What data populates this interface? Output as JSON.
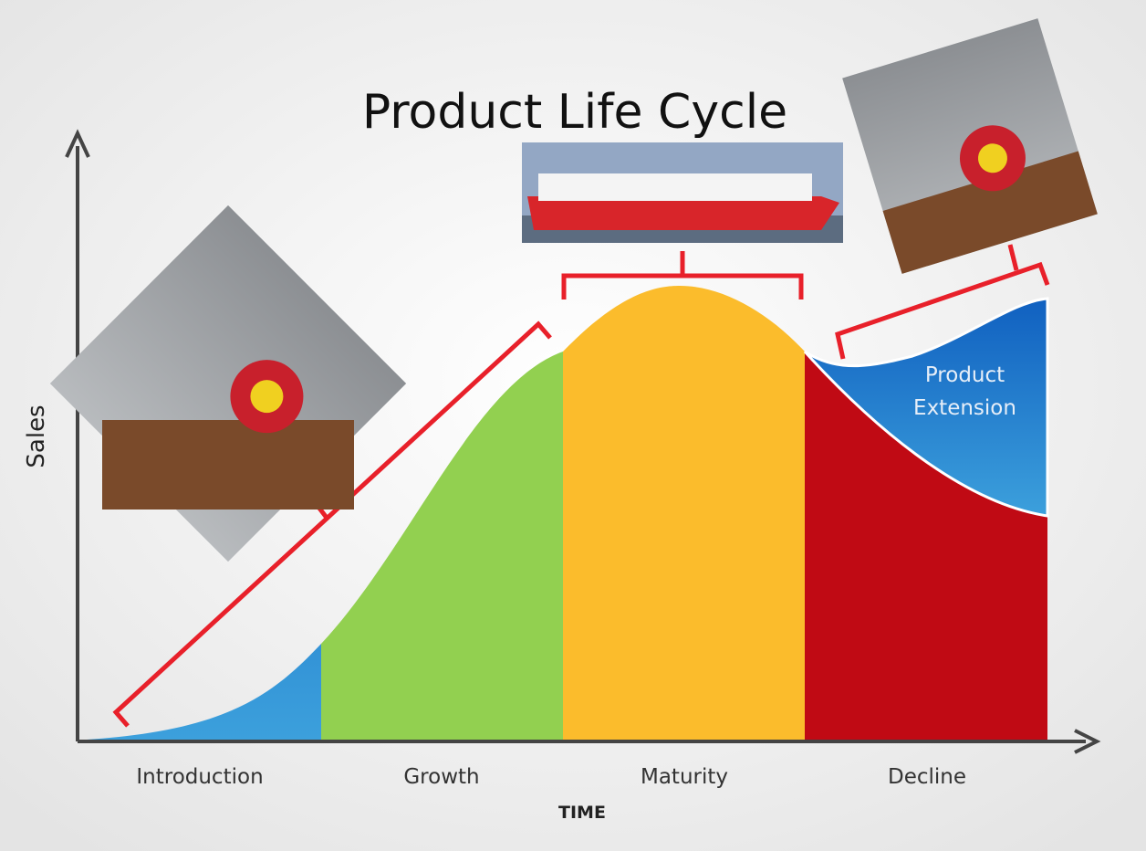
{
  "title": "Product Life Cycle",
  "axes": {
    "y_label": "Sales",
    "x_label": "TIME"
  },
  "stages": [
    {
      "label": "Introduction"
    },
    {
      "label": "Growth"
    },
    {
      "label": "Maturity"
    },
    {
      "label": "Decline"
    }
  ],
  "extension": {
    "label": "Product Extension"
  }
}
